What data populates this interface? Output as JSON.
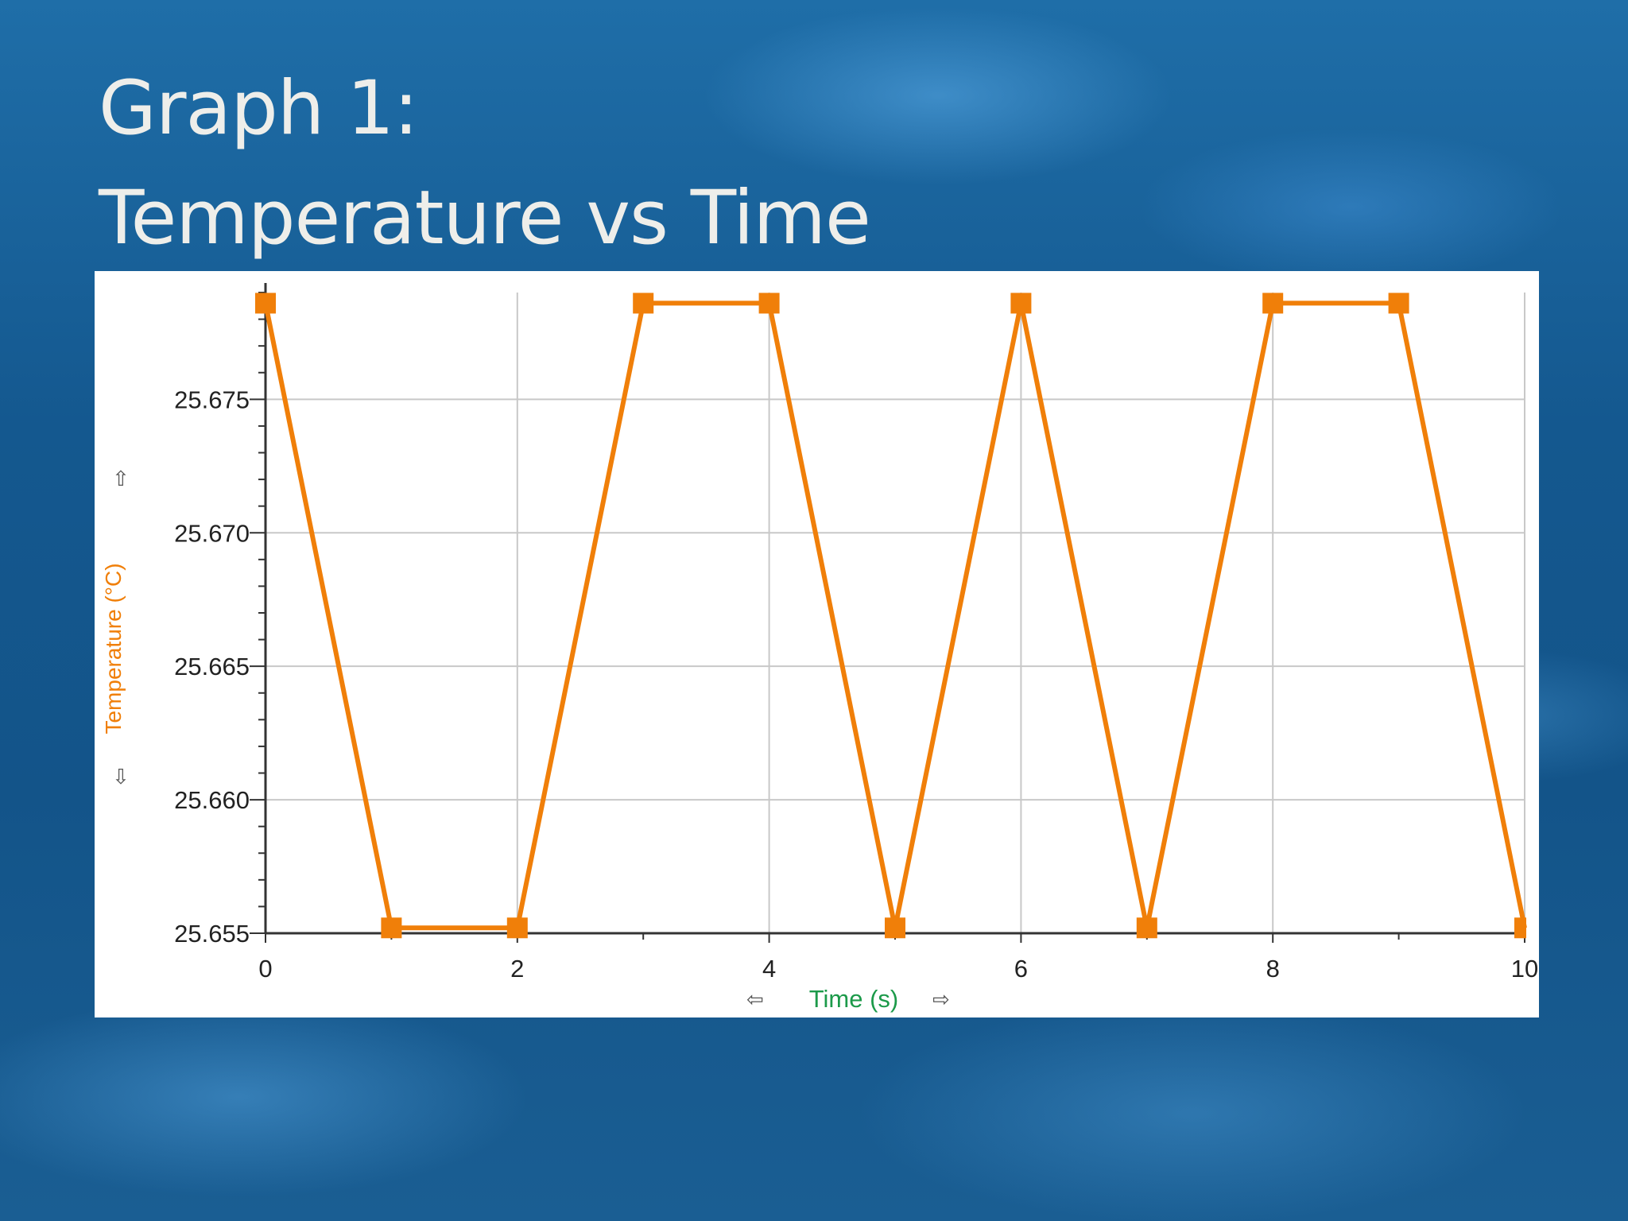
{
  "slide": {
    "title_line1": "Graph 1:",
    "title_line2": "Temperature vs Time"
  },
  "colors": {
    "series": "#f07f09",
    "x_axis_title": "#1c9a4a",
    "y_axis_title": "#f07f09",
    "grid": "#c8c8c8",
    "title_text": "#eeeeea"
  },
  "chart_data": {
    "type": "line",
    "title": "",
    "xlabel": "Time (s)",
    "ylabel": "Temperature (°C)",
    "xlim": [
      0,
      10
    ],
    "ylim": [
      25.655,
      25.679
    ],
    "x_ticks": [
      0,
      2,
      4,
      6,
      8,
      10
    ],
    "x_tick_labels": [
      "0",
      "2",
      "4",
      "6",
      "8",
      "10"
    ],
    "y_ticks": [
      25.655,
      25.66,
      25.665,
      25.67,
      25.675
    ],
    "y_tick_labels": [
      "25.655",
      "25.660",
      "25.665",
      "25.670",
      "25.675"
    ],
    "grid": true,
    "markers": "square",
    "series": [
      {
        "x": [
          0,
          1,
          2,
          3,
          4,
          5,
          6,
          7,
          8,
          9,
          10
        ],
        "values": [
          25.6786,
          25.6552,
          25.6552,
          25.6786,
          25.6786,
          25.6552,
          25.6786,
          25.6552,
          25.6786,
          25.6786,
          25.6552
        ]
      }
    ]
  },
  "axis_arrows": {
    "y_up": "⇧",
    "y_down": "⇩",
    "x_left": "⇦",
    "x_right": "⇨"
  }
}
